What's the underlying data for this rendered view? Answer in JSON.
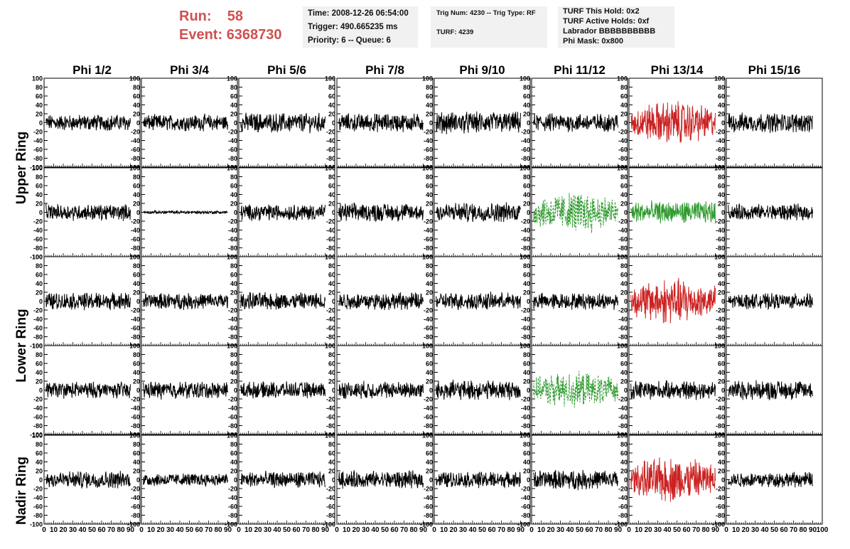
{
  "header": {
    "run_label": "Run:",
    "run_value": "58",
    "event_label": "Event:",
    "event_value": "6368730"
  },
  "info_box_1": {
    "time": "Time: 2008-12-26 06:54:00",
    "trigger": "Trigger: 490.665235 ms",
    "priority": "Priority: 6 -- Queue: 6"
  },
  "info_box_2": {
    "trig": "Trig Num: 4230 -- Trig Type: RF",
    "turf": "TURF: 4239"
  },
  "info_box_3": {
    "hold": "TURF This Hold: 0x2",
    "active": "TURF Active Holds: 0xf",
    "labrador": "Labrador BBBBBBBBBB",
    "phimask": "Phi Mask: 0x800"
  },
  "chart_data": {
    "type": "line",
    "title": "",
    "column_labels": [
      "Phi 1/2",
      "Phi 3/4",
      "Phi 5/6",
      "Phi 7/8",
      "Phi 9/10",
      "Phi 11/12",
      "Phi 13/14",
      "Phi 15/16"
    ],
    "ring_labels": [
      "Upper Ring",
      "Lower Ring",
      "Nadir Ring"
    ],
    "xlim": [
      0,
      100
    ],
    "ylim": [
      -100,
      100
    ],
    "x_ticks": [
      0,
      10,
      20,
      30,
      40,
      50,
      60,
      70,
      80,
      90,
      100
    ],
    "y_ticks": [
      -100,
      -80,
      -60,
      -40,
      -20,
      0,
      20,
      40,
      60,
      80,
      100
    ],
    "colors": {
      "normal": "#000000",
      "triggered": "#cc2222",
      "masked": "#2e9a2e"
    },
    "panels": [
      [
        "normal",
        "normal",
        "normal",
        "normal",
        "normal",
        "normal",
        "triggered",
        "normal"
      ],
      [
        "normal",
        "quiet",
        "normal",
        "normal",
        "normal",
        "masked-dashed",
        "masked",
        "normal"
      ],
      [
        "normal",
        "normal",
        "normal",
        "normal",
        "normal",
        "normal",
        "triggered",
        "normal"
      ],
      [
        "normal",
        "normal",
        "normal",
        "normal",
        "normal",
        "masked-dashed",
        "normal",
        "normal"
      ],
      [
        "normal",
        "normal",
        "normal",
        "normal",
        "normal",
        "normal",
        "triggered",
        "normal"
      ]
    ],
    "amplitudes": [
      [
        15,
        15,
        18,
        17,
        20,
        17,
        40,
        18
      ],
      [
        15,
        3,
        15,
        17,
        18,
        38,
        20,
        15
      ],
      [
        16,
        15,
        16,
        16,
        16,
        15,
        42,
        14
      ],
      [
        15,
        16,
        15,
        16,
        18,
        32,
        17,
        18
      ],
      [
        16,
        12,
        15,
        16,
        15,
        18,
        42,
        14
      ]
    ]
  }
}
